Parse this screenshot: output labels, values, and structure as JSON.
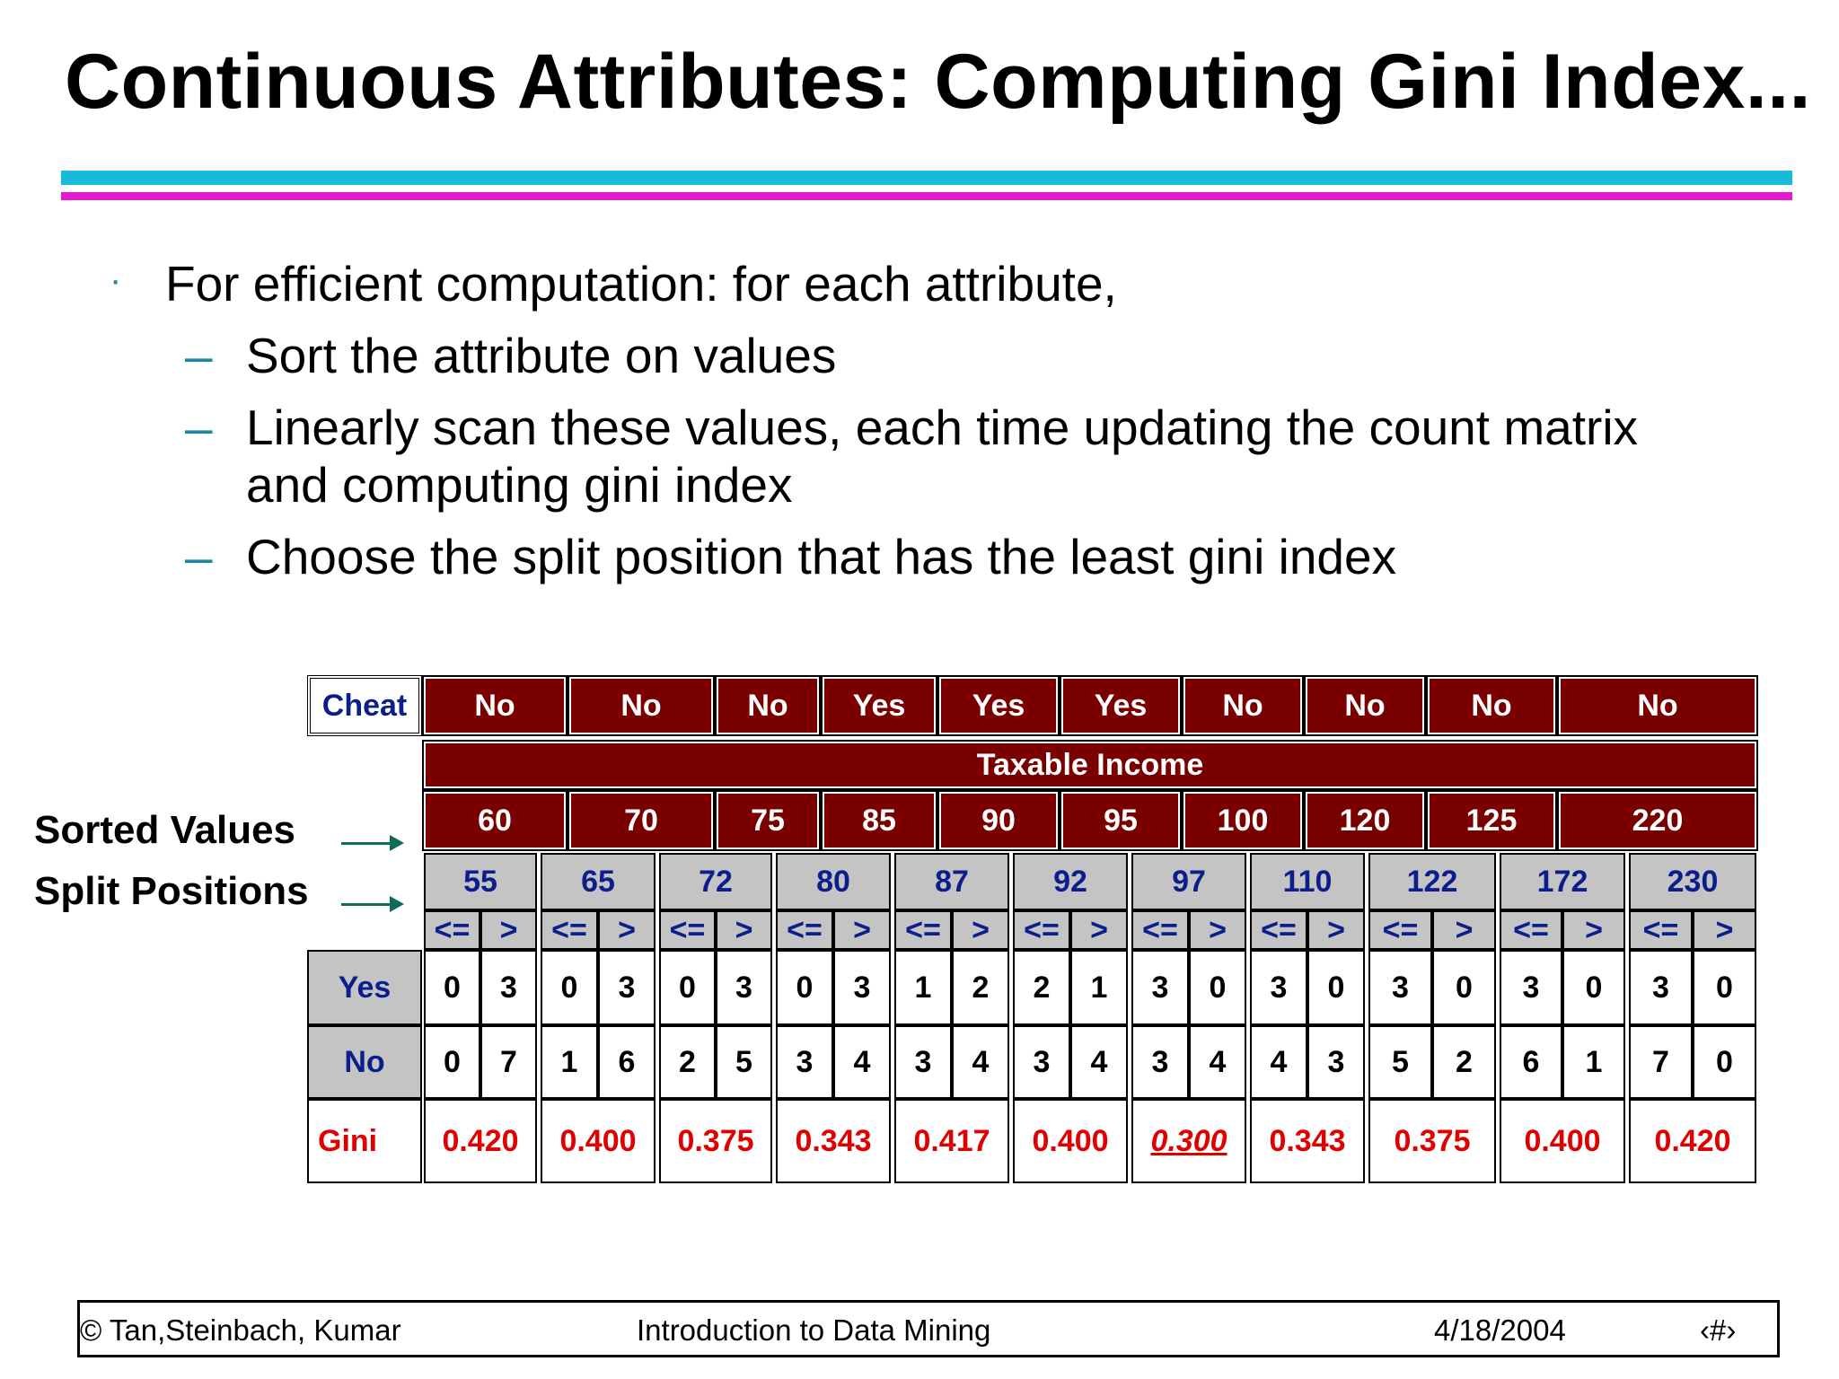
{
  "title": "Continuous Attributes: Computing Gini Index...",
  "bullets": {
    "main": "For efficient computation: for each attribute,",
    "sub1": "Sort the attribute on values",
    "sub2_line1": "Linearly scan these values, each time updating the count matrix",
    "sub2_line2": "and computing gini index",
    "sub3": "Choose the split position that has the least gini index"
  },
  "side_labels": {
    "sorted": "Sorted Values",
    "split": "Split Positions"
  },
  "table": {
    "cheat_label": "Cheat",
    "cheat_values": [
      "No",
      "No",
      "No",
      "Yes",
      "Yes",
      "Yes",
      "No",
      "No",
      "No",
      "No"
    ],
    "attribute_label": "Taxable Income",
    "sorted_values": [
      "60",
      "70",
      "75",
      "85",
      "90",
      "95",
      "100",
      "120",
      "125",
      "220"
    ],
    "split_positions": [
      "55",
      "65",
      "72",
      "80",
      "87",
      "92",
      "97",
      "110",
      "122",
      "172",
      "230"
    ],
    "le_label": "<=",
    "gt_label": ">",
    "yes_label": "Yes",
    "no_label": "No",
    "gini_label": "Gini",
    "yes_counts": [
      [
        "0",
        "3"
      ],
      [
        "0",
        "3"
      ],
      [
        "0",
        "3"
      ],
      [
        "0",
        "3"
      ],
      [
        "1",
        "2"
      ],
      [
        "2",
        "1"
      ],
      [
        "3",
        "0"
      ],
      [
        "3",
        "0"
      ],
      [
        "3",
        "0"
      ],
      [
        "3",
        "0"
      ],
      [
        "3",
        "0"
      ]
    ],
    "no_counts": [
      [
        "0",
        "7"
      ],
      [
        "1",
        "6"
      ],
      [
        "2",
        "5"
      ],
      [
        "3",
        "4"
      ],
      [
        "3",
        "4"
      ],
      [
        "3",
        "4"
      ],
      [
        "3",
        "4"
      ],
      [
        "4",
        "3"
      ],
      [
        "5",
        "2"
      ],
      [
        "6",
        "1"
      ],
      [
        "7",
        "0"
      ]
    ],
    "gini_values": [
      "0.420",
      "0.400",
      "0.375",
      "0.343",
      "0.417",
      "0.400",
      "0.300",
      "0.343",
      "0.375",
      "0.400",
      "0.420"
    ],
    "best_split_index": 6
  },
  "footer": {
    "authors": "© Tan,Steinbach, Kumar",
    "course": "Introduction to Data Mining",
    "date": "4/18/2004",
    "page": "‹#›"
  },
  "colors": {
    "header_red": "#7a0000",
    "gray": "#c4c4c4",
    "gini_red": "#e00000",
    "rule_cyan": "#19b9d8",
    "rule_magenta": "#e21ad2"
  }
}
